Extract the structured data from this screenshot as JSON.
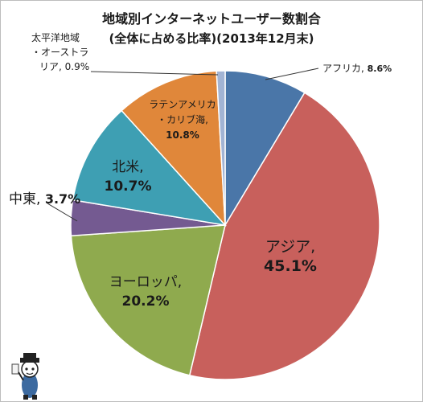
{
  "chart_data": {
    "type": "pie",
    "title": "地域別インターネットユーザー数割合",
    "subtitle": "(全体に占める比率)(2013年12月末)",
    "slices": [
      {
        "name": "アフリカ",
        "value": 8.6,
        "value_label": "8.6%",
        "color": "#4a76a8"
      },
      {
        "name": "アジア",
        "value": 45.1,
        "value_label": "45.1%",
        "color": "#c8605c"
      },
      {
        "name": "ヨーロッパ",
        "value": 20.2,
        "value_label": "20.2%",
        "color": "#8faa4e"
      },
      {
        "name": "中東",
        "value": 3.7,
        "value_label": "3.7%",
        "color": "#745a91"
      },
      {
        "name": "北米",
        "value": 10.7,
        "value_label": "10.7%",
        "color": "#3e9fb3"
      },
      {
        "name": "ラテンアメリカ・カリブ海",
        "value": 10.8,
        "value_label": "10.8%",
        "color": "#e0873a"
      },
      {
        "name": "太平洋地域・オーストラリア",
        "value": 0.9,
        "value_label": "0.9%",
        "color": "#a2b4d4"
      }
    ]
  }
}
